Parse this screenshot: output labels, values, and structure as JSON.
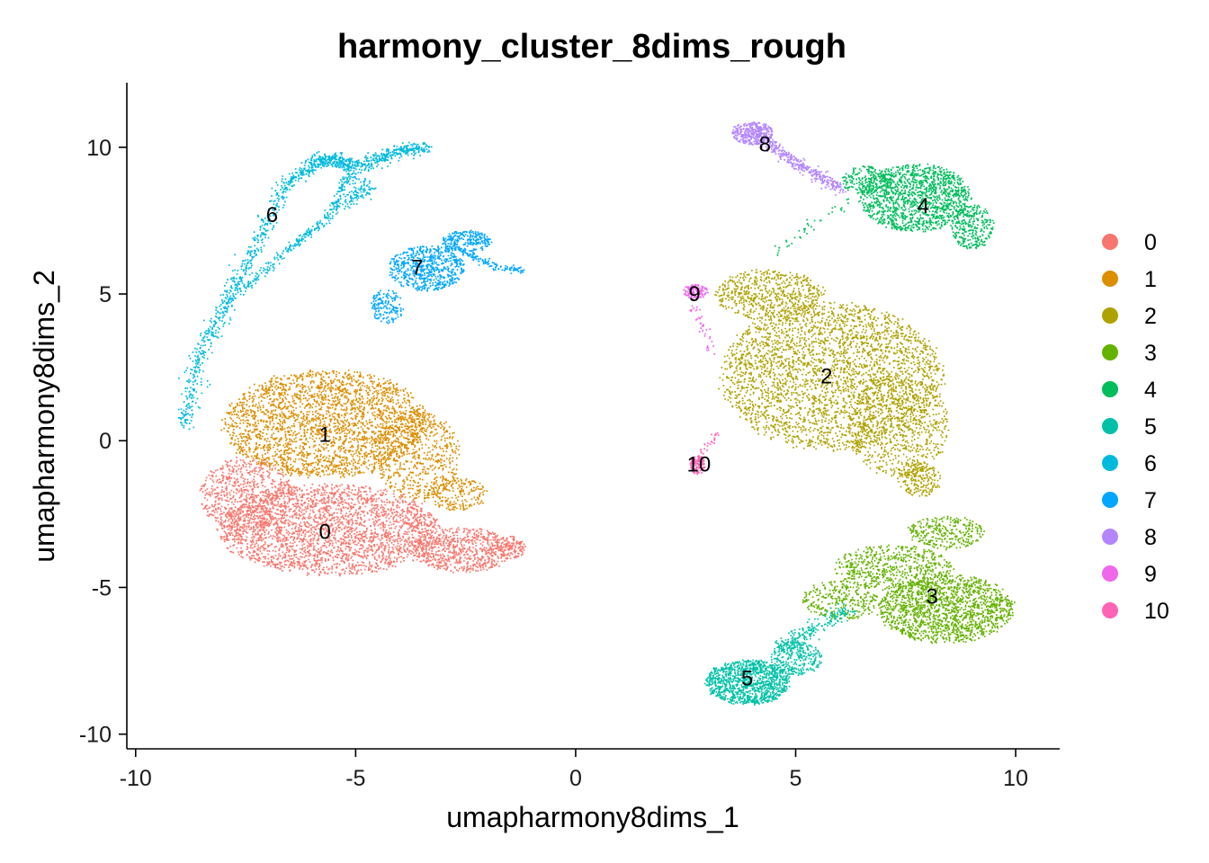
{
  "chart_data": {
    "type": "scatter",
    "title": "harmony_cluster_8dims_rough",
    "xlabel": "umapharmony8dims_1",
    "ylabel": "umapharmony8dims_2",
    "xlim": [
      -10.2,
      11.0
    ],
    "ylim": [
      -10.5,
      12.2
    ],
    "x_ticks": [
      -10,
      -5,
      0,
      5,
      10
    ],
    "y_ticks": [
      -10,
      -5,
      0,
      5,
      10
    ],
    "x_tick_labels": [
      "-10",
      "-5",
      "0",
      "5",
      "10"
    ],
    "y_tick_labels": [
      "-10",
      "-5",
      "0",
      "5",
      "10"
    ],
    "grid": false,
    "legend_position": "right",
    "clusters": [
      {
        "name": "0",
        "color": "#F8766D",
        "label_x": -5.7,
        "label_y": -3.1
      },
      {
        "name": "1",
        "color": "#DB8E00",
        "label_x": -5.7,
        "label_y": 0.2
      },
      {
        "name": "2",
        "color": "#AEA200",
        "label_x": 5.7,
        "label_y": 2.2
      },
      {
        "name": "3",
        "color": "#64B200",
        "label_x": 8.1,
        "label_y": -5.3
      },
      {
        "name": "4",
        "color": "#00BD5C",
        "label_x": 7.9,
        "label_y": 8.0
      },
      {
        "name": "5",
        "color": "#00C1A7",
        "label_x": 3.9,
        "label_y": -8.1
      },
      {
        "name": "6",
        "color": "#00BADE",
        "label_x": -6.9,
        "label_y": 7.7
      },
      {
        "name": "7",
        "color": "#00A6FF",
        "label_x": -3.6,
        "label_y": 5.9
      },
      {
        "name": "8",
        "color": "#B385FF",
        "label_x": 4.3,
        "label_y": 10.1
      },
      {
        "name": "9",
        "color": "#EF67EB",
        "label_x": 2.7,
        "label_y": 5.0
      },
      {
        "name": "10",
        "color": "#FF63B6",
        "label_x": 2.8,
        "label_y": -0.8
      }
    ]
  }
}
